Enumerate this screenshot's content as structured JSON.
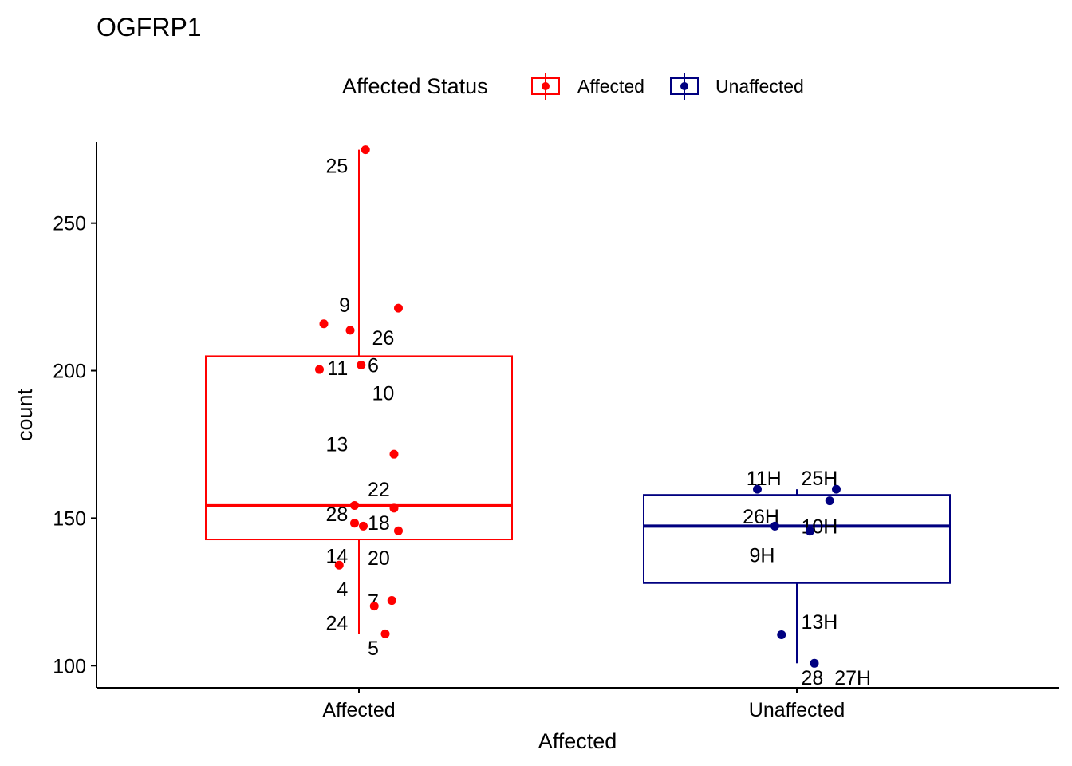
{
  "chart_data": {
    "type": "box",
    "title": "OGFRP1",
    "xlabel": "Affected",
    "ylabel": "count",
    "ylim": [
      92.5,
      277.5
    ],
    "yticks": [
      100,
      150,
      200,
      250
    ],
    "grid": false,
    "legend": {
      "title": "Affected Status",
      "position": "top",
      "entries": [
        "Affected",
        "Unaffected"
      ]
    },
    "categories": [
      "Affected",
      "Unaffected"
    ],
    "colors": {
      "Affected": "#ff0000",
      "Unaffected": "#000080"
    },
    "boxes": [
      {
        "category": "Affected",
        "q1": 142.8,
        "median": 154.2,
        "q3": 204.9,
        "whisker_low": 110.8,
        "whisker_high": 274.9
      },
      {
        "category": "Unaffected",
        "q1": 128.0,
        "median": 147.3,
        "q3": 157.9,
        "whisker_low": 100.8,
        "whisker_high": 159.8
      }
    ],
    "points": [
      {
        "group": "Affected",
        "x": 0.03,
        "y": 274.9,
        "label": "25",
        "lx": -0.05,
        "ly": 269.5
      },
      {
        "group": "Affected",
        "x": -0.04,
        "y": 213.7,
        "label": "9",
        "lx": -0.04,
        "ly": 222.3
      },
      {
        "group": "Affected",
        "x": 0.18,
        "y": 221.2,
        "label": "26",
        "lx": 0.06,
        "ly": 211.2
      },
      {
        "group": "Affected",
        "x": -0.16,
        "y": 215.9,
        "label": "11",
        "lx": -0.05,
        "ly": 201.0
      },
      {
        "group": "Affected",
        "x": 0.01,
        "y": 201.9,
        "label": "6",
        "lx": 0.04,
        "ly": 201.9
      },
      {
        "group": "Affected",
        "x": -0.18,
        "y": 200.4,
        "label": "10",
        "lx": 0.06,
        "ly": 192.5
      },
      {
        "group": "Affected",
        "x": 0.16,
        "y": 171.7,
        "label": "13",
        "lx": -0.05,
        "ly": 175.1
      },
      {
        "group": "Affected",
        "x": -0.02,
        "y": 154.3,
        "label": "22",
        "lx": 0.04,
        "ly": 159.8
      },
      {
        "group": "Affected",
        "x": 0.16,
        "y": 153.4,
        "label": "28",
        "lx": -0.05,
        "ly": 151.5
      },
      {
        "group": "Affected",
        "x": -0.02,
        "y": 148.3,
        "label": "18",
        "lx": 0.04,
        "ly": 148.5
      },
      {
        "group": "Affected",
        "x": 0.02,
        "y": 147.3,
        "label": "14",
        "lx": -0.05,
        "ly": 137.2
      },
      {
        "group": "Affected",
        "x": 0.18,
        "y": 145.7,
        "label": "20",
        "lx": 0.04,
        "ly": 136.6
      },
      {
        "group": "Affected",
        "x": -0.09,
        "y": 134.1,
        "label": "4",
        "lx": -0.05,
        "ly": 126.1
      },
      {
        "group": "Affected",
        "x": 0.15,
        "y": 122.1,
        "label": "7",
        "lx": 0.04,
        "ly": 121.9
      },
      {
        "group": "Affected",
        "x": 0.07,
        "y": 120.2,
        "label": "24",
        "lx": -0.05,
        "ly": 114.6
      },
      {
        "group": "Affected",
        "x": 0.12,
        "y": 110.8,
        "label": "5",
        "lx": 0.04,
        "ly": 106.0
      },
      {
        "group": "Unaffected",
        "x": -0.18,
        "y": 159.8,
        "label": "11H",
        "lx": -0.07,
        "ly": 163.6
      },
      {
        "group": "Unaffected",
        "x": 0.18,
        "y": 159.8,
        "label": "25H",
        "lx": 0.02,
        "ly": 163.6
      },
      {
        "group": "Unaffected",
        "x": 0.15,
        "y": 155.9,
        "label": "26H",
        "lx": -0.08,
        "ly": 150.6
      },
      {
        "group": "Unaffected",
        "x": -0.1,
        "y": 147.3,
        "label": "10H",
        "lx": 0.02,
        "ly": 147.3
      },
      {
        "group": "Unaffected",
        "x": 0.06,
        "y": 145.6,
        "label": "9H",
        "lx": -0.1,
        "ly": 137.5
      },
      {
        "group": "Unaffected",
        "x": -0.07,
        "y": 110.5,
        "label": "13H",
        "lx": 0.02,
        "ly": 114.9
      },
      {
        "group": "Unaffected",
        "x": 0.08,
        "y": 100.8,
        "label": "28_27H",
        "lx": 0.02,
        "ly": 96.0
      }
    ]
  }
}
